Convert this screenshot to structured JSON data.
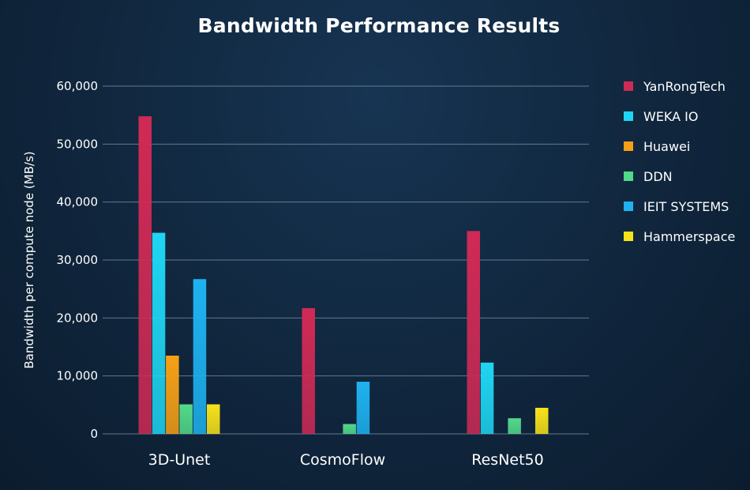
{
  "chart_data": {
    "type": "bar",
    "title": "Bandwidth Performance Results",
    "xlabel": "",
    "ylabel": "Bandwidth per compute node (MB/s)",
    "ylim": [
      0,
      60000
    ],
    "yticks": [
      "0",
      "10,000",
      "20,000",
      "30,000",
      "40,000",
      "50,000",
      "60,000"
    ],
    "categories": [
      "3D-Unet",
      "CosmoFlow",
      "ResNet50"
    ],
    "grid": true,
    "legend_position": "right",
    "series": [
      {
        "name": "YanRongTech",
        "color": "#cf2a55",
        "values": [
          54800,
          21700,
          35000
        ]
      },
      {
        "name": "WEKA IO",
        "color": "#1fd5f2",
        "values": [
          34700,
          null,
          12300
        ]
      },
      {
        "name": "Huawei",
        "color": "#f5a016",
        "values": [
          13500,
          null,
          null
        ]
      },
      {
        "name": "DDN",
        "color": "#52d98a",
        "values": [
          5100,
          1700,
          2700
        ]
      },
      {
        "name": "IEIT SYSTEMS",
        "color": "#1eb2f0",
        "values": [
          26700,
          9000,
          null
        ]
      },
      {
        "name": "Hammerspace",
        "color": "#f7e21a",
        "values": [
          5100,
          null,
          4500
        ]
      }
    ]
  }
}
